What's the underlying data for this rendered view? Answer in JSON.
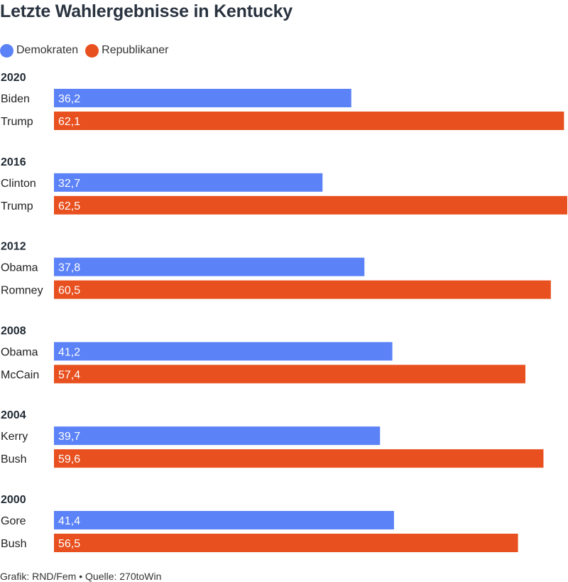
{
  "title": "Letzte Wahlergebnisse in Kentucky",
  "legend": [
    {
      "label": "Demokraten",
      "color": "#5b82f7"
    },
    {
      "label": "Republikaner",
      "color": "#e8501f"
    }
  ],
  "footer": "Grafik: RND/Fem • Quelle: 270toWin",
  "chart_data": {
    "type": "bar",
    "orientation": "horizontal",
    "value_max": 62.5,
    "grid": false,
    "legend_position": "top-left",
    "groups": [
      {
        "year": "2020",
        "bars": [
          {
            "candidate": "Biden",
            "party": "Demokraten",
            "value": 36.2,
            "label": "36,2"
          },
          {
            "candidate": "Trump",
            "party": "Republikaner",
            "value": 62.1,
            "label": "62,1"
          }
        ]
      },
      {
        "year": "2016",
        "bars": [
          {
            "candidate": "Clinton",
            "party": "Demokraten",
            "value": 32.7,
            "label": "32,7"
          },
          {
            "candidate": "Trump",
            "party": "Republikaner",
            "value": 62.5,
            "label": "62,5"
          }
        ]
      },
      {
        "year": "2012",
        "bars": [
          {
            "candidate": "Obama",
            "party": "Demokraten",
            "value": 37.8,
            "label": "37,8"
          },
          {
            "candidate": "Romney",
            "party": "Republikaner",
            "value": 60.5,
            "label": "60,5"
          }
        ]
      },
      {
        "year": "2008",
        "bars": [
          {
            "candidate": "Obama",
            "party": "Demokraten",
            "value": 41.2,
            "label": "41,2"
          },
          {
            "candidate": "McCain",
            "party": "Republikaner",
            "value": 57.4,
            "label": "57,4"
          }
        ]
      },
      {
        "year": "2004",
        "bars": [
          {
            "candidate": "Kerry",
            "party": "Demokraten",
            "value": 39.7,
            "label": "39,7"
          },
          {
            "candidate": "Bush",
            "party": "Republikaner",
            "value": 59.6,
            "label": "59,6"
          }
        ]
      },
      {
        "year": "2000",
        "bars": [
          {
            "candidate": "Gore",
            "party": "Demokraten",
            "value": 41.4,
            "label": "41,4"
          },
          {
            "candidate": "Bush",
            "party": "Republikaner",
            "value": 56.5,
            "label": "56,5"
          }
        ]
      }
    ]
  }
}
